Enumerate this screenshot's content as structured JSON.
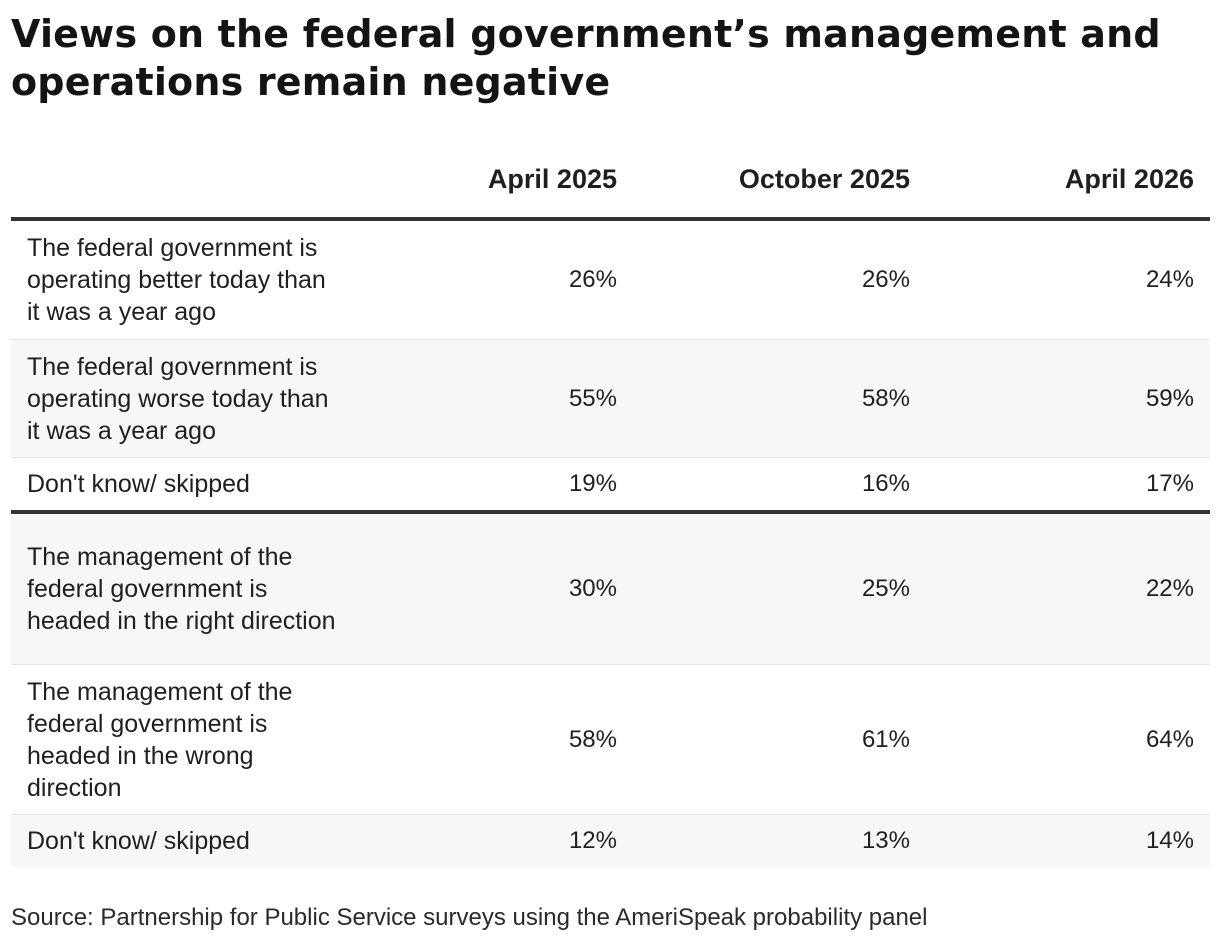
{
  "title": "Views on the federal government’s management and operations remain negative",
  "source": "Source: Partnership for Public Service surveys using the AmeriSpeak probability panel",
  "chart_data": {
    "type": "table",
    "title": "Views on the federal government’s management and operations remain negative",
    "columns": [
      "April 2025",
      "October 2025",
      "April 2026"
    ],
    "rows": [
      {
        "label": "The federal government is operating better today than it was a year ago",
        "values": [
          "26%",
          "26%",
          "24%"
        ]
      },
      {
        "label": "The federal government is operating worse today than it was a year ago",
        "values": [
          "55%",
          "58%",
          "59%"
        ]
      },
      {
        "label": "Don't know/ skipped",
        "values": [
          "19%",
          "16%",
          "17%"
        ]
      },
      {
        "label": "The management of the federal government is headed in the right direction",
        "values": [
          "30%",
          "25%",
          "22%"
        ]
      },
      {
        "label": "The management of the federal government is headed in the wrong direction",
        "values": [
          "58%",
          "61%",
          "64%"
        ]
      },
      {
        "label": "Don't know/ skipped",
        "values": [
          "12%",
          "13%",
          "14%"
        ]
      }
    ]
  }
}
